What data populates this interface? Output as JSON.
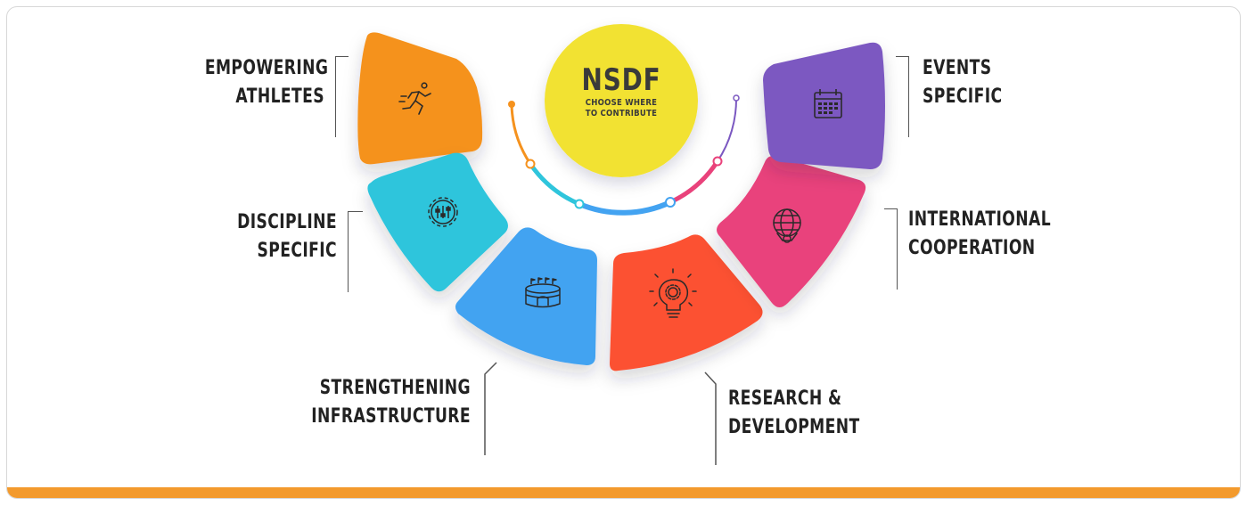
{
  "center": {
    "title": "NSDF",
    "subtitle_line1": "CHOOSE WHERE",
    "subtitle_line2": "TO CONTRIBUTE",
    "color": "#f2e233"
  },
  "segments": [
    {
      "id": "empowering-athletes",
      "line1": "EMPOWERING",
      "line2": "ATHLETES",
      "color": "#f5921e",
      "icon": "running-athlete-icon"
    },
    {
      "id": "discipline-specific",
      "line1": "DISCIPLINE",
      "line2": "SPECIFIC",
      "color": "#2fc5dc",
      "icon": "gear-sliders-icon"
    },
    {
      "id": "strengthening-infrastructure",
      "line1": "STRENGTHENING",
      "line2": "INFRASTRUCTURE",
      "color": "#43a3f1",
      "icon": "stadium-icon"
    },
    {
      "id": "research-development",
      "line1": "RESEARCH &",
      "line2": "DEVELOPMENT",
      "color": "#fc5131",
      "icon": "lightbulb-gear-icon"
    },
    {
      "id": "international-cooperation",
      "line1": "INTERNATIONAL",
      "line2": "COOPERATION",
      "color": "#e9427b",
      "icon": "globe-handshake-icon"
    },
    {
      "id": "events-specific",
      "line1": "EVENTS",
      "line2": "SPECIFIC",
      "color": "#7b58c1",
      "icon": "calendar-icon"
    }
  ],
  "arc_colors": [
    "#f5921e",
    "#2fc5dc",
    "#43a3f1",
    "#e9427b",
    "#7b58c1"
  ],
  "bottom_bar_color": "#f39a2d"
}
